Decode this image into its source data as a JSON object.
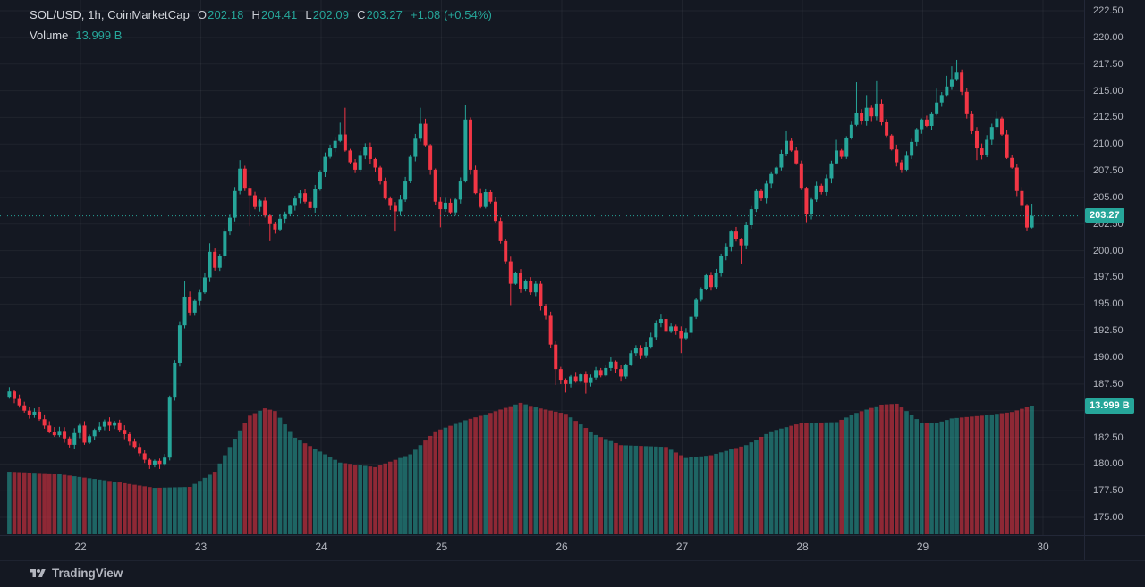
{
  "legend": {
    "symbol_title": "SOL/USD, 1h, CoinMarketCap",
    "o_label": "O",
    "o_value": "202.18",
    "h_label": "H",
    "h_value": "204.41",
    "l_label": "L",
    "l_value": "202.09",
    "c_label": "C",
    "c_value": "203.27",
    "change": "+1.08 (+0.54%)",
    "volume_label": "Volume",
    "volume_value": "13.999 B"
  },
  "badges": {
    "price": "203.27",
    "volume": "13.999 B"
  },
  "watermark": {
    "brand": "TradingView"
  },
  "price_axis": {
    "labels": [
      "222.50",
      "220.00",
      "217.50",
      "215.00",
      "212.50",
      "210.00",
      "207.50",
      "205.00",
      "202.50",
      "200.00",
      "197.50",
      "195.00",
      "192.50",
      "190.00",
      "187.50",
      "185.00",
      "182.50",
      "180.00",
      "177.50",
      "175.00"
    ]
  },
  "time_axis": {
    "labels": [
      "22",
      "23",
      "24",
      "25",
      "26",
      "27",
      "28",
      "29",
      "30"
    ]
  },
  "colors": {
    "background": "#141822",
    "up": "#26a69a",
    "down": "#f23645",
    "volume_up": "rgba(38,166,154,0.55)",
    "volume_down": "rgba(242,54,69,0.55)",
    "grid": "rgba(255,255,255,0.05)",
    "axis_text": "#b2b5be",
    "badge_bg": "#26a69a",
    "price_line": "#26a69a"
  },
  "chart_data": {
    "type": "candlestick+volume",
    "symbol": "SOL/USD",
    "interval": "1h",
    "source": "CoinMarketCap",
    "current_candle": {
      "open": 202.18,
      "high": 204.41,
      "low": 202.09,
      "close": 203.27,
      "change": 1.08,
      "change_pct": 0.54
    },
    "current_volume_billions": 13.999,
    "y_axis": {
      "min": 175.0,
      "max": 222.5,
      "tick_step": 2.5
    },
    "x_axis_day_labels": [
      22,
      23,
      24,
      25,
      26,
      27,
      28,
      29,
      30
    ],
    "first_open": 186.3,
    "closes": [
      186.8,
      186.1,
      185.5,
      185.0,
      184.6,
      184.9,
      184.2,
      183.6,
      183.0,
      182.7,
      183.1,
      182.4,
      181.8,
      182.9,
      183.6,
      182.0,
      182.6,
      183.2,
      183.5,
      184.0,
      183.6,
      183.9,
      183.2,
      182.8,
      182.1,
      181.6,
      181.0,
      180.4,
      179.9,
      180.3,
      180.0,
      180.6,
      186.3,
      189.5,
      193.0,
      195.7,
      194.2,
      195.3,
      196.1,
      197.5,
      199.9,
      198.4,
      199.5,
      201.8,
      203.1,
      205.6,
      207.7,
      205.9,
      205.2,
      204.1,
      204.7,
      203.3,
      202.5,
      202.0,
      203.0,
      203.5,
      204.2,
      204.9,
      205.4,
      204.6,
      204.0,
      205.8,
      207.4,
      208.8,
      209.6,
      210.3,
      210.9,
      209.4,
      208.3,
      207.6,
      208.9,
      209.7,
      208.6,
      207.8,
      206.5,
      204.9,
      204.2,
      203.7,
      204.8,
      206.5,
      208.8,
      210.5,
      211.9,
      209.9,
      207.6,
      204.6,
      203.9,
      204.5,
      203.6,
      204.8,
      206.5,
      212.3,
      207.6,
      205.4,
      204.1,
      205.5,
      204.6,
      202.8,
      200.9,
      199.0,
      196.9,
      197.9,
      196.4,
      197.2,
      196.1,
      196.9,
      194.8,
      193.9,
      191.2,
      188.9,
      187.9,
      187.5,
      188.2,
      187.8,
      188.4,
      187.6,
      188.1,
      188.8,
      188.3,
      189.0,
      189.6,
      188.9,
      188.2,
      189.3,
      190.4,
      190.9,
      190.2,
      191.0,
      191.9,
      193.2,
      193.6,
      192.4,
      192.9,
      192.5,
      191.8,
      192.3,
      193.8,
      195.4,
      196.4,
      197.7,
      196.6,
      197.9,
      199.5,
      200.4,
      201.8,
      201.1,
      200.5,
      202.4,
      203.9,
      205.6,
      204.9,
      206.3,
      207.2,
      207.8,
      209.1,
      210.3,
      209.4,
      208.2,
      205.9,
      203.4,
      204.8,
      206.1,
      205.5,
      206.8,
      208.2,
      209.4,
      208.8,
      210.6,
      211.8,
      212.9,
      212.2,
      213.4,
      212.6,
      213.8,
      212.1,
      210.8,
      209.5,
      208.3,
      207.6,
      208.9,
      210.2,
      211.4,
      212.3,
      211.7,
      212.8,
      213.9,
      214.6,
      215.4,
      216.1,
      216.7,
      214.9,
      212.8,
      211.2,
      209.6,
      209.0,
      210.4,
      211.6,
      212.4,
      210.9,
      208.7,
      207.8,
      205.6,
      204.2,
      202.18,
      203.27
    ],
    "wick_overrides": {
      "35": {
        "h": 197.2
      },
      "40": {
        "h": 200.7
      },
      "46": {
        "h": 208.5
      },
      "48": {
        "l": 202.3
      },
      "52": {
        "l": 200.9
      },
      "66": {
        "h": 212.0
      },
      "67": {
        "h": 213.4
      },
      "77": {
        "l": 201.8
      },
      "82": {
        "h": 213.4
      },
      "86": {
        "l": 202.2
      },
      "91": {
        "h": 213.7
      },
      "100": {
        "l": 194.9
      },
      "109": {
        "l": 187.4
      },
      "111": {
        "l": 186.7
      },
      "115": {
        "l": 186.6
      },
      "134": {
        "l": 190.4
      },
      "146": {
        "l": 198.8
      },
      "155": {
        "h": 211.2
      },
      "159": {
        "l": 202.6
      },
      "165": {
        "h": 210.4
      },
      "169": {
        "h": 215.8
      },
      "171": {
        "h": 214.6
      },
      "173": {
        "h": 215.9
      },
      "185": {
        "h": 215.2
      },
      "187": {
        "h": 216.4
      },
      "188": {
        "h": 217.3
      },
      "189": {
        "h": 217.9
      },
      "193": {
        "l": 208.5
      },
      "197": {
        "h": 213.1
      },
      "203": {
        "l": 201.9
      },
      "204": {
        "h": 204.41,
        "l": 202.09
      }
    },
    "volume_billions_keypoints": [
      [
        0,
        6.8
      ],
      [
        9,
        6.6
      ],
      [
        20,
        5.8
      ],
      [
        29,
        5.05
      ],
      [
        36,
        5.15
      ],
      [
        41,
        6.8
      ],
      [
        46,
        11.3
      ],
      [
        48,
        12.9
      ],
      [
        51,
        13.7
      ],
      [
        53,
        13.4
      ],
      [
        57,
        10.5
      ],
      [
        61,
        9.3
      ],
      [
        66,
        7.8
      ],
      [
        73,
        7.3
      ],
      [
        80,
        8.7
      ],
      [
        85,
        11.2
      ],
      [
        91,
        12.4
      ],
      [
        96,
        13.2
      ],
      [
        102,
        14.3
      ],
      [
        105,
        13.8
      ],
      [
        111,
        13.1
      ],
      [
        117,
        10.8
      ],
      [
        122,
        9.7
      ],
      [
        131,
        9.5
      ],
      [
        135,
        8.3
      ],
      [
        140,
        8.6
      ],
      [
        147,
        9.7
      ],
      [
        152,
        11.2
      ],
      [
        158,
        12.1
      ],
      [
        165,
        12.2
      ],
      [
        169,
        13.2
      ],
      [
        174,
        14.1
      ],
      [
        177,
        14.2
      ],
      [
        179,
        13.4
      ],
      [
        182,
        12.1
      ],
      [
        185,
        12.1
      ],
      [
        188,
        12.6
      ],
      [
        194,
        12.9
      ],
      [
        200,
        13.3
      ],
      [
        204,
        13.999
      ]
    ]
  }
}
